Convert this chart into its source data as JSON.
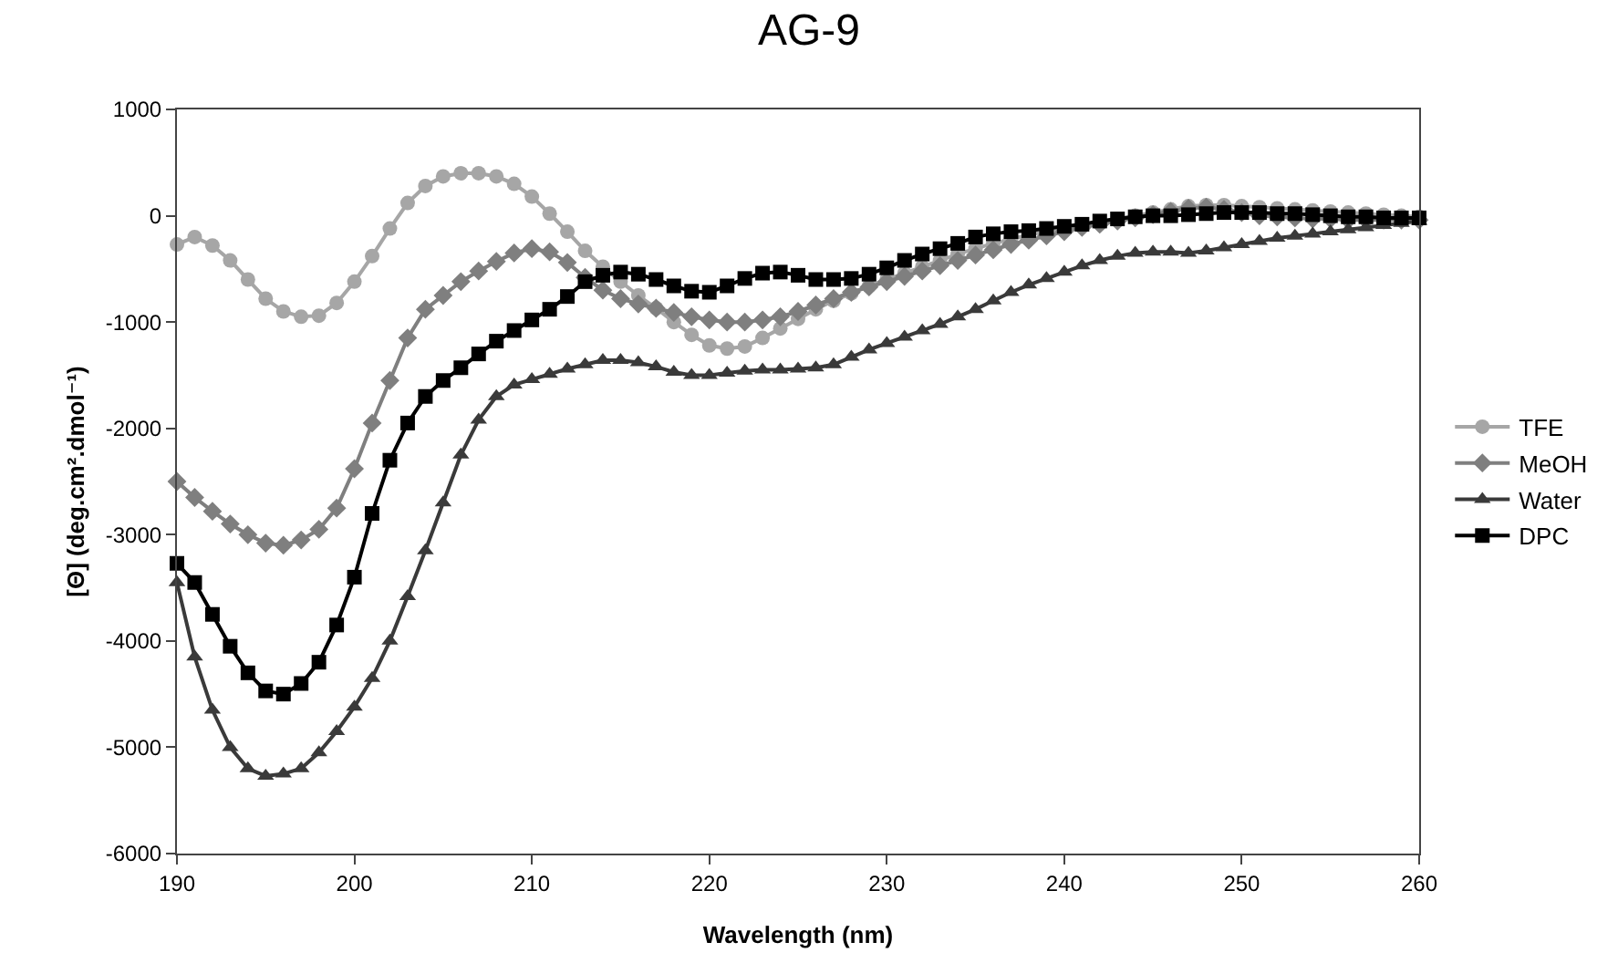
{
  "chart_data": {
    "type": "line",
    "title": "AG-9",
    "xlabel": "Wavelength (nm)",
    "ylabel": "[Θ] (deg.cm².dmol⁻¹)",
    "x": [
      190,
      191,
      192,
      193,
      194,
      195,
      196,
      197,
      198,
      199,
      200,
      201,
      202,
      203,
      204,
      205,
      206,
      207,
      208,
      209,
      210,
      211,
      212,
      213,
      214,
      215,
      216,
      217,
      218,
      219,
      220,
      221,
      222,
      223,
      224,
      225,
      226,
      227,
      228,
      229,
      230,
      231,
      232,
      233,
      234,
      235,
      236,
      237,
      238,
      239,
      240,
      241,
      242,
      243,
      244,
      245,
      246,
      247,
      248,
      249,
      250,
      251,
      252,
      253,
      254,
      255,
      256,
      257,
      258,
      259,
      260
    ],
    "series": [
      {
        "name": "TFE",
        "color": "#a6a6a6",
        "marker": "circle",
        "values": [
          -270,
          -200,
          -280,
          -420,
          -600,
          -780,
          -900,
          -950,
          -940,
          -820,
          -620,
          -380,
          -120,
          120,
          280,
          370,
          400,
          400,
          370,
          300,
          180,
          20,
          -150,
          -330,
          -480,
          -620,
          -750,
          -870,
          -1000,
          -1120,
          -1220,
          -1250,
          -1230,
          -1150,
          -1060,
          -970,
          -880,
          -800,
          -730,
          -660,
          -600,
          -540,
          -480,
          -420,
          -360,
          -310,
          -260,
          -220,
          -180,
          -150,
          -120,
          -90,
          -60,
          -30,
          0,
          30,
          60,
          90,
          100,
          100,
          90,
          80,
          70,
          60,
          50,
          40,
          30,
          20,
          10,
          0,
          -10
        ]
      },
      {
        "name": "MeOH",
        "color": "#7f7f7f",
        "marker": "diamond",
        "values": [
          -2500,
          -2650,
          -2780,
          -2900,
          -3000,
          -3080,
          -3100,
          -3050,
          -2950,
          -2750,
          -2380,
          -1950,
          -1550,
          -1150,
          -880,
          -750,
          -620,
          -520,
          -430,
          -350,
          -310,
          -340,
          -440,
          -580,
          -700,
          -780,
          -830,
          -870,
          -910,
          -950,
          -980,
          -1000,
          -1000,
          -980,
          -950,
          -900,
          -840,
          -780,
          -720,
          -670,
          -620,
          -570,
          -520,
          -470,
          -420,
          -370,
          -320,
          -270,
          -230,
          -190,
          -150,
          -110,
          -80,
          -50,
          -20,
          10,
          40,
          70,
          80,
          60,
          30,
          0,
          -10,
          -20,
          -30,
          -30,
          -40,
          -40,
          -40,
          -40,
          -40
        ]
      },
      {
        "name": "Water",
        "color": "#3a3a3a",
        "marker": "triangle",
        "values": [
          -3450,
          -4150,
          -4650,
          -5000,
          -5200,
          -5270,
          -5250,
          -5200,
          -5050,
          -4850,
          -4620,
          -4350,
          -4000,
          -3580,
          -3150,
          -2700,
          -2250,
          -1920,
          -1700,
          -1590,
          -1540,
          -1490,
          -1440,
          -1400,
          -1360,
          -1360,
          -1380,
          -1420,
          -1470,
          -1500,
          -1500,
          -1480,
          -1460,
          -1450,
          -1450,
          -1440,
          -1430,
          -1400,
          -1330,
          -1260,
          -1200,
          -1140,
          -1080,
          -1020,
          -950,
          -880,
          -800,
          -720,
          -650,
          -590,
          -530,
          -470,
          -420,
          -380,
          -350,
          -340,
          -340,
          -350,
          -330,
          -300,
          -270,
          -240,
          -210,
          -190,
          -170,
          -150,
          -130,
          -110,
          -90,
          -70,
          -50
        ]
      },
      {
        "name": "DPC",
        "color": "#000000",
        "marker": "square",
        "values": [
          -3270,
          -3450,
          -3750,
          -4050,
          -4300,
          -4470,
          -4500,
          -4400,
          -4200,
          -3850,
          -3400,
          -2800,
          -2300,
          -1950,
          -1700,
          -1550,
          -1430,
          -1300,
          -1180,
          -1080,
          -980,
          -880,
          -760,
          -620,
          -560,
          -530,
          -550,
          -600,
          -660,
          -710,
          -720,
          -660,
          -590,
          -540,
          -530,
          -560,
          -600,
          -600,
          -590,
          -550,
          -490,
          -420,
          -360,
          -310,
          -260,
          -200,
          -170,
          -150,
          -140,
          -120,
          -100,
          -80,
          -50,
          -30,
          -10,
          0,
          0,
          10,
          20,
          30,
          30,
          30,
          20,
          20,
          10,
          0,
          -10,
          -10,
          -20,
          -20,
          -20
        ]
      }
    ],
    "xlim": [
      190,
      260
    ],
    "xticks": [
      190,
      200,
      210,
      220,
      230,
      240,
      250,
      260
    ],
    "ylim": [
      -6000,
      1000
    ],
    "yticks": [
      -6000,
      -5000,
      -4000,
      -3000,
      -2000,
      -1000,
      0,
      1000
    ],
    "grid": false,
    "legend": "right",
    "line_style": "solid"
  }
}
